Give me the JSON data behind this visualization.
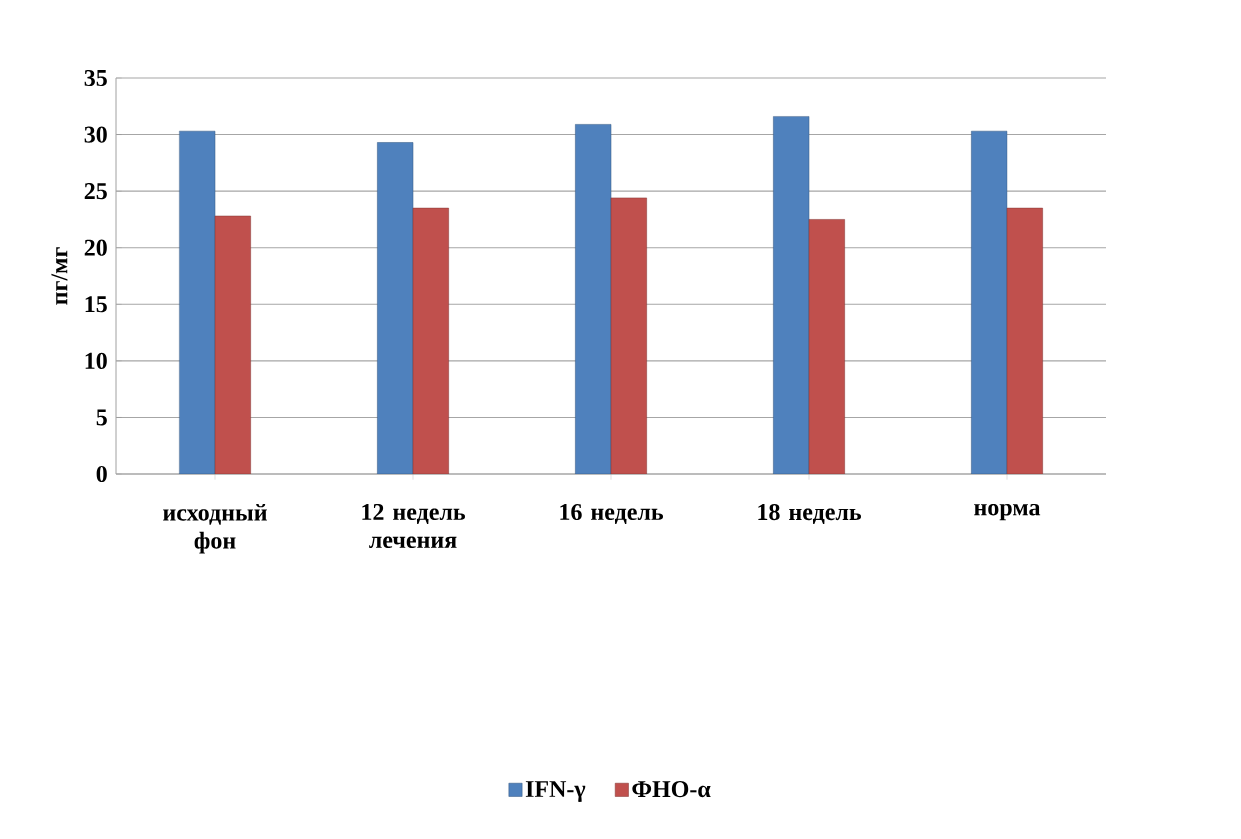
{
  "chart_data": {
    "type": "bar",
    "ylabel": "пг/мг",
    "categories": [
      "исходный фон",
      "12 недель лечения",
      "16 недель",
      "18 недель",
      "норма"
    ],
    "series": [
      {
        "name": "IFN-γ",
        "color": "#4f81bd",
        "values": [
          30.3,
          29.3,
          30.9,
          31.6,
          30.3
        ]
      },
      {
        "name": "ФНО-α",
        "color": "#c0504d",
        "values": [
          22.8,
          23.5,
          24.4,
          22.5,
          23.5
        ]
      }
    ],
    "ylim": [
      0,
      35
    ],
    "yticks": [
      0,
      5,
      10,
      15,
      20,
      25,
      30,
      35
    ],
    "grid": "y",
    "legend": "bottom"
  }
}
